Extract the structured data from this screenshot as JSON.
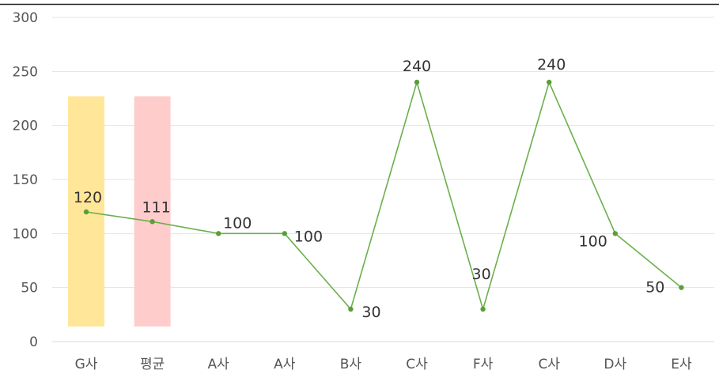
{
  "chart_data": {
    "type": "line",
    "title": "",
    "xlabel": "",
    "ylabel": "",
    "ylim": [
      0,
      300
    ],
    "yticks": [
      0,
      50,
      100,
      150,
      200,
      250,
      300
    ],
    "grid": true,
    "legend": "none",
    "categories": [
      "G사",
      "평균",
      "A사",
      "A사",
      "B사",
      "C사",
      "F사",
      "C사",
      "D사",
      "E사"
    ],
    "series": [
      {
        "type": "line",
        "values": [
          120,
          111,
          100,
          100,
          30,
          240,
          30,
          240,
          100,
          50
        ],
        "data_labels": [
          "120",
          "111",
          "100",
          "100",
          "30",
          "240",
          "30",
          "240",
          "100",
          "50"
        ],
        "color": "#6ab04c",
        "marker_color": "#5a9e3a"
      }
    ],
    "highlights": [
      {
        "category_index": 0,
        "from": 14,
        "to": 227,
        "color": "#ffe699"
      },
      {
        "category_index": 1,
        "from": 14,
        "to": 227,
        "color": "#ffcccc"
      }
    ],
    "colors": {
      "grid": "#e3e3e3",
      "top_border": "#222222",
      "axis_line": "#d9d9d9",
      "tick_text": "#555555",
      "label_text": "#333333"
    }
  }
}
